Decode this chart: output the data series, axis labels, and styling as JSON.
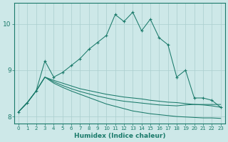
{
  "xlabel": "Humidex (Indice chaleur)",
  "background_color": "#cde8e8",
  "line_color": "#1a7a6a",
  "grid_color": "#aacece",
  "xlim": [
    -0.5,
    23.5
  ],
  "ylim": [
    7.85,
    10.45
  ],
  "xticks": [
    0,
    1,
    2,
    3,
    4,
    5,
    6,
    7,
    8,
    9,
    10,
    11,
    12,
    13,
    14,
    15,
    16,
    17,
    18,
    19,
    20,
    21,
    22,
    23
  ],
  "yticks": [
    8,
    9,
    10
  ],
  "x": [
    0,
    1,
    2,
    3,
    4,
    5,
    6,
    7,
    8,
    9,
    10,
    11,
    12,
    13,
    14,
    15,
    16,
    17,
    18,
    19,
    20,
    21,
    22,
    23
  ],
  "main_line": [
    8.1,
    8.3,
    8.55,
    9.2,
    8.85,
    8.95,
    9.1,
    9.25,
    9.45,
    9.6,
    9.75,
    10.2,
    10.05,
    10.25,
    9.85,
    10.1,
    9.7,
    9.55,
    8.85,
    9.0,
    8.4,
    8.4,
    8.35,
    8.2
  ],
  "flat1": [
    8.1,
    8.3,
    8.55,
    8.85,
    8.78,
    8.72,
    8.66,
    8.6,
    8.56,
    8.52,
    8.48,
    8.45,
    8.42,
    8.4,
    8.38,
    8.35,
    8.33,
    8.31,
    8.3,
    8.28,
    8.26,
    8.25,
    8.23,
    8.2
  ],
  "flat2": [
    8.1,
    8.3,
    8.55,
    8.85,
    8.72,
    8.63,
    8.55,
    8.48,
    8.41,
    8.34,
    8.27,
    8.22,
    8.17,
    8.12,
    8.09,
    8.06,
    8.04,
    8.02,
    8.0,
    7.99,
    7.98,
    7.97,
    7.97,
    7.96
  ],
  "flat3": [
    8.1,
    8.3,
    8.55,
    8.85,
    8.75,
    8.67,
    8.6,
    8.54,
    8.49,
    8.44,
    8.4,
    8.36,
    8.33,
    8.31,
    8.29,
    8.27,
    8.25,
    8.24,
    8.23,
    8.25,
    8.26,
    8.26,
    8.26,
    8.26
  ]
}
